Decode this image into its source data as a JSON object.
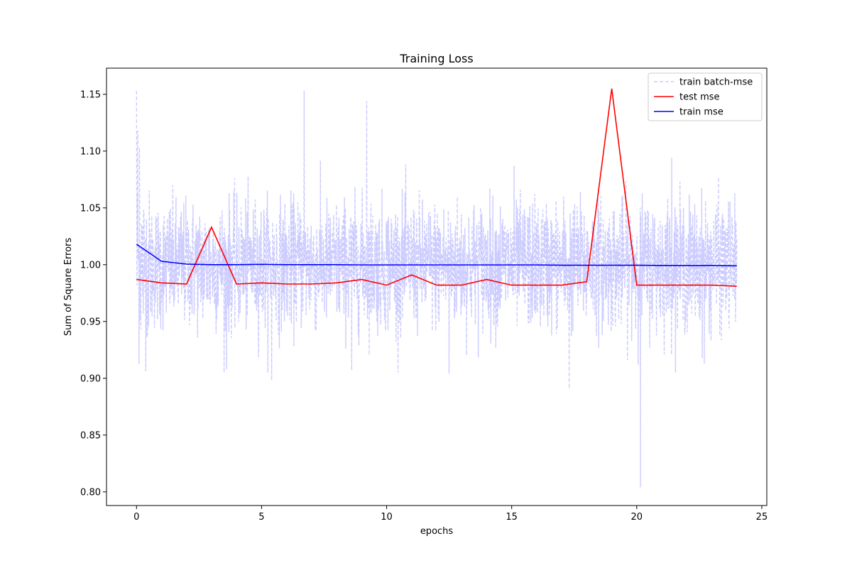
{
  "chart_data": {
    "type": "line",
    "title": "Training Loss",
    "xlabel": "epochs",
    "ylabel": "Sum of Square Errors",
    "xlim": [
      -1.2,
      25.2
    ],
    "ylim": [
      0.788,
      1.173
    ],
    "xticks": [
      0,
      5,
      10,
      15,
      20,
      25
    ],
    "xtick_labels": [
      "0",
      "5",
      "10",
      "15",
      "20",
      "25"
    ],
    "yticks": [
      0.8,
      0.85,
      0.9,
      0.95,
      1.0,
      1.05,
      1.1,
      1.15
    ],
    "ytick_labels": [
      "0.80",
      "0.85",
      "0.90",
      "0.95",
      "1.00",
      "1.05",
      "1.10",
      "1.15"
    ],
    "grid": false,
    "legend_position": "top-right",
    "series": [
      {
        "name": "train batch-mse",
        "color": "#ccccff",
        "style": "dashed",
        "x_range": [
          0,
          24
        ],
        "samples": 2400,
        "baseline": 1.0,
        "notable_values": [
          {
            "x": 0.0,
            "y": 1.153
          },
          {
            "x": 0.05,
            "y": 1.118
          },
          {
            "x": 0.12,
            "y": 1.103
          },
          {
            "x": 6.7,
            "y": 1.153
          },
          {
            "x": 9.2,
            "y": 1.144
          },
          {
            "x": 12.5,
            "y": 0.904
          },
          {
            "x": 17.3,
            "y": 0.891
          },
          {
            "x": 20.15,
            "y": 0.804
          },
          {
            "x": 22.7,
            "y": 0.913
          },
          {
            "x": 3.6,
            "y": 0.908
          },
          {
            "x": 5.4,
            "y": 0.898
          },
          {
            "x": 8.6,
            "y": 0.907
          },
          {
            "x": 15.1,
            "y": 1.087
          },
          {
            "x": 21.4,
            "y": 1.094
          }
        ]
      },
      {
        "name": "test mse",
        "color": "#ff0000",
        "style": "solid",
        "x": [
          0,
          1,
          2,
          3,
          4,
          5,
          6,
          7,
          8,
          9,
          10,
          11,
          12,
          13,
          14,
          15,
          16,
          17,
          18,
          19,
          20,
          21,
          22,
          23,
          24
        ],
        "values": [
          0.987,
          0.984,
          0.983,
          1.033,
          0.983,
          0.984,
          0.983,
          0.983,
          0.984,
          0.987,
          0.982,
          0.991,
          0.982,
          0.982,
          0.987,
          0.982,
          0.982,
          0.982,
          0.985,
          1.155,
          0.982,
          0.982,
          0.982,
          0.982,
          0.981
        ]
      },
      {
        "name": "train mse",
        "color": "#0000ff",
        "style": "solid",
        "x": [
          0,
          1,
          2,
          3,
          4,
          5,
          6,
          7,
          8,
          9,
          10,
          11,
          12,
          13,
          14,
          15,
          16,
          17,
          18,
          19,
          20,
          21,
          22,
          23,
          24
        ],
        "values": [
          1.018,
          1.003,
          1.0005,
          1.0,
          1.0,
          1.0003,
          1.0,
          1.0,
          1.0,
          0.9998,
          0.9998,
          0.9998,
          0.9998,
          0.9998,
          0.9998,
          0.9998,
          0.9998,
          0.9995,
          0.9995,
          0.9995,
          0.9995,
          0.9993,
          0.9992,
          0.9993,
          0.999
        ]
      }
    ]
  }
}
